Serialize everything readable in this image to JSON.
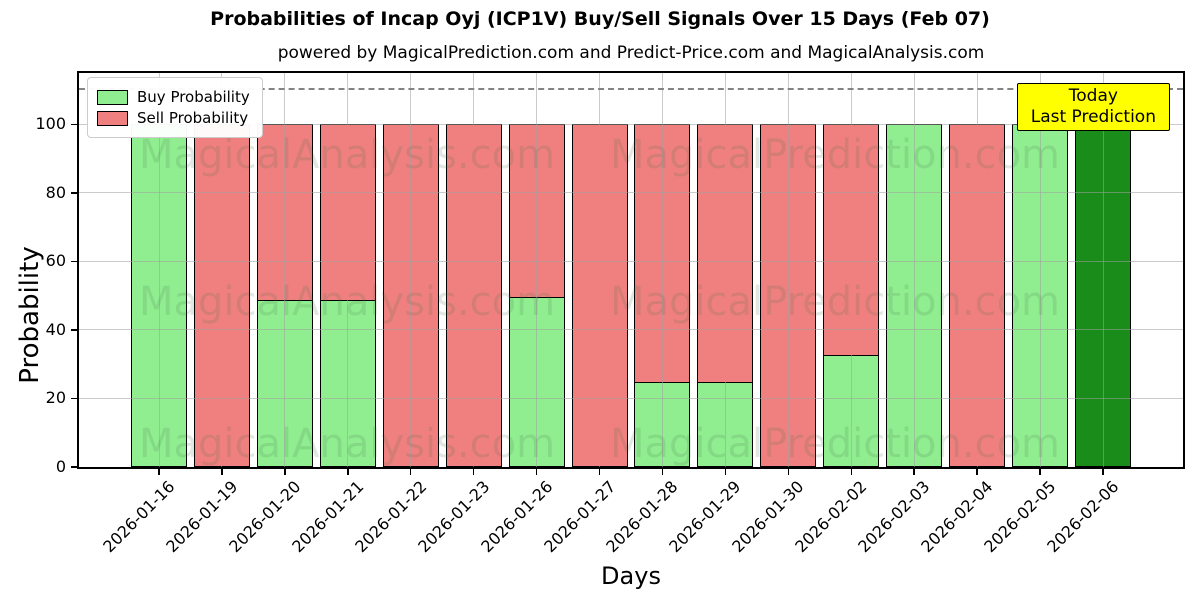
{
  "chart_data": {
    "type": "bar",
    "stacked": true,
    "title": "Probabilities of Incap Oyj (ICP1V) Buy/Sell Signals Over 15 Days (Feb 07)",
    "subtitle": "powered by MagicalPrediction.com and Predict-Price.com and MagicalAnalysis.com",
    "xlabel": "Days",
    "ylabel": "Probability",
    "ylim": [
      0,
      115
    ],
    "yticks": [
      0,
      20,
      40,
      60,
      80,
      100
    ],
    "grid": true,
    "legend_position": "upper left",
    "dashed_threshold_y": 110,
    "categories": [
      "2026-01-16",
      "2026-01-19",
      "2026-01-20",
      "2026-01-21",
      "2026-01-22",
      "2026-01-23",
      "2026-01-26",
      "2026-01-27",
      "2026-01-28",
      "2026-01-29",
      "2026-01-30",
      "2026-02-02",
      "2026-02-03",
      "2026-02-04",
      "2026-02-05",
      "2026-02-06"
    ],
    "series": [
      {
        "name": "Buy Probability",
        "color": "#90EE90",
        "values": [
          100,
          0,
          49,
          49,
          0,
          0,
          50,
          0,
          25,
          25,
          0,
          33,
          100,
          0,
          100,
          100
        ]
      },
      {
        "name": "Sell Probability",
        "color": "#F08080",
        "values": [
          0,
          100,
          51,
          51,
          100,
          100,
          50,
          100,
          75,
          75,
          100,
          67,
          0,
          100,
          0,
          0
        ]
      }
    ],
    "today_bar": {
      "category": "2026-02-06",
      "index": 15,
      "color": "#1a8c1a"
    }
  },
  "annotation": {
    "line1": "Today",
    "line2": "Last Prediction",
    "bg_color": "#FFFF00"
  },
  "watermarks": {
    "left": "MagicalAnalysis.com",
    "right": "MagicalPrediction.com"
  },
  "colors": {
    "buy": "#90EE90",
    "sell": "#F08080",
    "today_bar": "#1a8c1a",
    "grid": "#a0a0a0",
    "dashed_line": "#848484",
    "bar_edge": "#000000",
    "annotation_bg": "#FFFF00"
  }
}
